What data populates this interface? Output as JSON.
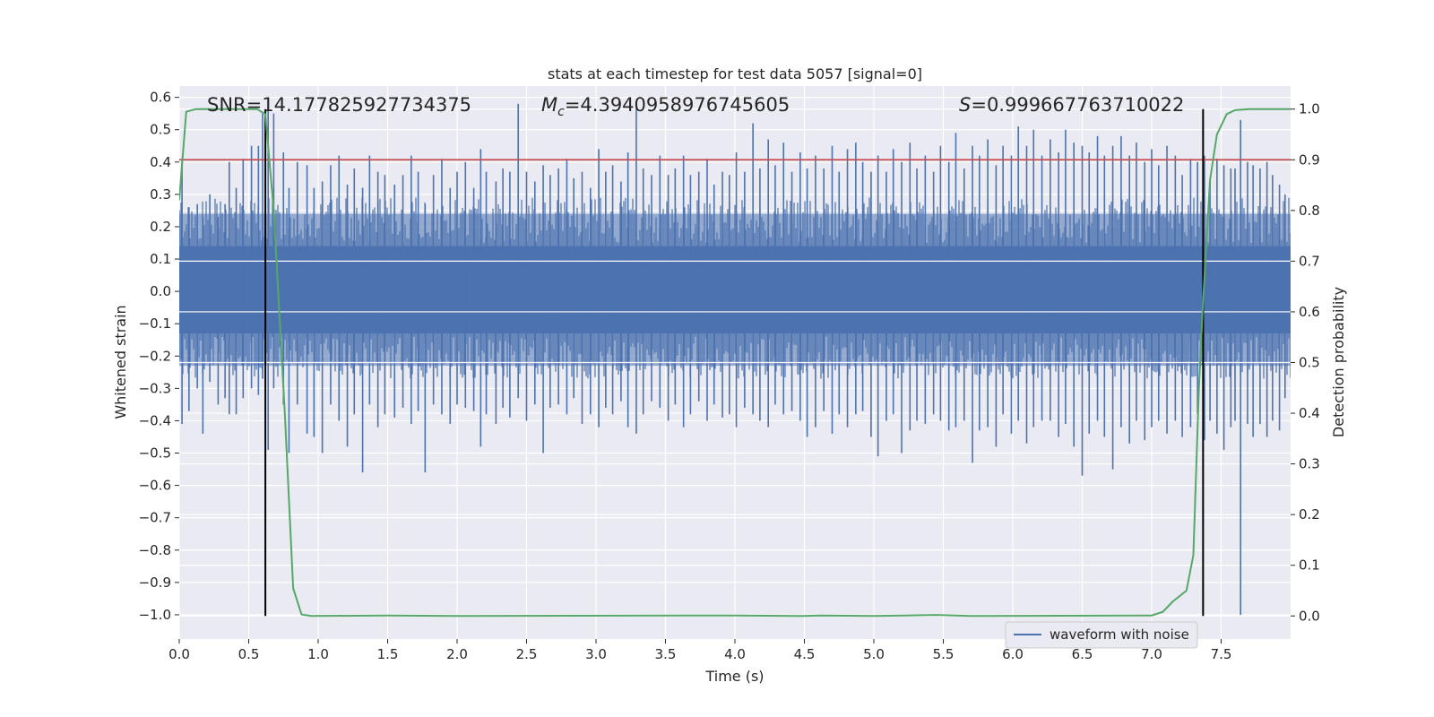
{
  "chart_data": {
    "type": "line",
    "title": "stats at each timestep for test data 5057 [signal=0]",
    "xlabel": "Time (s)",
    "ylabel": "Whitened strain",
    "y2label": "Detection probability",
    "xlim": [
      0.0,
      8.0
    ],
    "ylim": [
      -1.075,
      0.635
    ],
    "y2lim": [
      -0.0455,
      1.0455
    ],
    "xticks": [
      "0.0",
      "0.5",
      "1.0",
      "1.5",
      "2.0",
      "2.5",
      "3.0",
      "3.5",
      "4.0",
      "4.5",
      "5.0",
      "5.5",
      "6.0",
      "6.5",
      "7.0",
      "7.5"
    ],
    "yticks": [
      "0.6",
      "0.5",
      "0.4",
      "0.3",
      "0.2",
      "0.1",
      "0.0",
      "−0.1",
      "−0.2",
      "−0.3",
      "−0.4",
      "−0.5",
      "−0.6",
      "−0.7",
      "−0.8",
      "−0.9",
      "−1.0"
    ],
    "y2ticks": [
      "1.0",
      "0.9",
      "0.8",
      "0.7",
      "0.6",
      "0.5",
      "0.4",
      "0.3",
      "0.2",
      "0.1",
      "0.0"
    ],
    "grid": true,
    "legend": {
      "position": "lower-right",
      "entries": [
        "waveform with noise"
      ]
    },
    "annotations": {
      "snr": "SNR=14.177825927734375",
      "mc_symbol": "M",
      "mc_sub": "c",
      "mc_value": "=4.3940958976745605",
      "s_symbol": "S",
      "s_value": "=0.999667763710022"
    },
    "threshold": 0.9,
    "vlines": [
      0.62,
      7.37
    ],
    "waveform": {
      "name": "waveform with noise",
      "color": "#4c72b0",
      "spikes": [
        [
          0.02,
          0.41,
          -0.41
        ],
        [
          0.07,
          0.26,
          -0.37
        ],
        [
          0.13,
          0.27,
          -0.3
        ],
        [
          0.17,
          0.23,
          -0.44
        ],
        [
          0.22,
          0.3,
          -0.28
        ],
        [
          0.28,
          0.23,
          -0.35
        ],
        [
          0.33,
          0.27,
          -0.33
        ],
        [
          0.36,
          0.4,
          -0.38
        ],
        [
          0.41,
          0.32,
          -0.38
        ],
        [
          0.46,
          0.41,
          -0.33
        ],
        [
          0.52,
          0.45,
          -0.3
        ],
        [
          0.57,
          0.45,
          -0.32
        ],
        [
          0.6,
          0.55,
          -0.27
        ],
        [
          0.64,
          0.58,
          -0.49
        ],
        [
          0.68,
          0.55,
          -0.3
        ],
        [
          0.75,
          0.43,
          -0.35
        ],
        [
          0.79,
          0.32,
          -0.5
        ],
        [
          0.85,
          0.4,
          -0.35
        ],
        [
          0.92,
          0.39,
          -0.44
        ],
        [
          0.97,
          0.32,
          -0.45
        ],
        [
          1.03,
          0.34,
          -0.5
        ],
        [
          1.09,
          0.39,
          -0.35
        ],
        [
          1.15,
          0.42,
          -0.4
        ],
        [
          1.21,
          0.33,
          -0.48
        ],
        [
          1.26,
          0.38,
          -0.38
        ],
        [
          1.32,
          0.32,
          -0.56
        ],
        [
          1.37,
          0.42,
          -0.35
        ],
        [
          1.43,
          0.37,
          -0.42
        ],
        [
          1.48,
          0.36,
          -0.38
        ],
        [
          1.55,
          0.33,
          -0.39
        ],
        [
          1.61,
          0.36,
          -0.36
        ],
        [
          1.67,
          0.42,
          -0.41
        ],
        [
          1.72,
          0.37,
          -0.37
        ],
        [
          1.77,
          0.27,
          -0.56
        ],
        [
          1.83,
          0.36,
          -0.35
        ],
        [
          1.89,
          0.41,
          -0.38
        ],
        [
          1.95,
          0.32,
          -0.41
        ],
        [
          2.0,
          0.37,
          -0.35
        ],
        [
          2.06,
          0.4,
          -0.36
        ],
        [
          2.12,
          0.32,
          -0.37
        ],
        [
          2.17,
          0.44,
          -0.48
        ],
        [
          2.21,
          0.37,
          -0.38
        ],
        [
          2.28,
          0.34,
          -0.41
        ],
        [
          2.33,
          0.38,
          -0.36
        ],
        [
          2.38,
          0.37,
          -0.39
        ],
        [
          2.44,
          0.58,
          -0.33
        ],
        [
          2.5,
          0.37,
          -0.4
        ],
        [
          2.56,
          0.34,
          -0.35
        ],
        [
          2.62,
          0.39,
          -0.5
        ],
        [
          2.67,
          0.36,
          -0.36
        ],
        [
          2.73,
          0.38,
          -0.35
        ],
        [
          2.79,
          0.41,
          -0.38
        ],
        [
          2.84,
          0.35,
          -0.33
        ],
        [
          2.9,
          0.37,
          -0.41
        ],
        [
          2.96,
          0.32,
          -0.38
        ],
        [
          3.02,
          0.44,
          -0.42
        ],
        [
          3.07,
          0.37,
          -0.36
        ],
        [
          3.12,
          0.39,
          -0.38
        ],
        [
          3.18,
          0.34,
          -0.34
        ],
        [
          3.23,
          0.43,
          -0.42
        ],
        [
          3.29,
          0.58,
          -0.44
        ],
        [
          3.34,
          0.38,
          -0.38
        ],
        [
          3.4,
          0.36,
          -0.34
        ],
        [
          3.46,
          0.42,
          -0.36
        ],
        [
          3.52,
          0.36,
          -0.4
        ],
        [
          3.57,
          0.38,
          -0.35
        ],
        [
          3.63,
          0.42,
          -0.42
        ],
        [
          3.68,
          0.36,
          -0.38
        ],
        [
          3.74,
          0.37,
          -0.34
        ],
        [
          3.8,
          0.41,
          -0.4
        ],
        [
          3.85,
          0.33,
          -0.35
        ],
        [
          3.91,
          0.37,
          -0.39
        ],
        [
          3.96,
          0.36,
          -0.38
        ],
        [
          4.01,
          0.43,
          -0.42
        ],
        [
          4.07,
          0.37,
          -0.36
        ],
        [
          4.13,
          0.52,
          -0.38
        ],
        [
          4.18,
          0.38,
          -0.4
        ],
        [
          4.24,
          0.47,
          -0.42
        ],
        [
          4.29,
          0.39,
          -0.35
        ],
        [
          4.35,
          0.46,
          -0.38
        ],
        [
          4.41,
          0.37,
          -0.37
        ],
        [
          4.47,
          0.43,
          -0.4
        ],
        [
          4.52,
          0.38,
          -0.45
        ],
        [
          4.58,
          0.42,
          -0.42
        ],
        [
          4.64,
          0.38,
          -0.37
        ],
        [
          4.7,
          0.45,
          -0.44
        ],
        [
          4.75,
          0.37,
          -0.38
        ],
        [
          4.81,
          0.44,
          -0.42
        ],
        [
          4.87,
          0.46,
          -0.38
        ],
        [
          4.92,
          0.4,
          -0.37
        ],
        [
          4.98,
          0.37,
          -0.45
        ],
        [
          5.03,
          0.42,
          -0.51
        ],
        [
          5.09,
          0.37,
          -0.4
        ],
        [
          5.14,
          0.44,
          -0.38
        ],
        [
          5.2,
          0.4,
          -0.5
        ],
        [
          5.26,
          0.46,
          -0.43
        ],
        [
          5.31,
          0.38,
          -0.4
        ],
        [
          5.37,
          0.42,
          -0.41
        ],
        [
          5.43,
          0.37,
          -0.38
        ],
        [
          5.48,
          0.45,
          -0.4
        ],
        [
          5.54,
          0.4,
          -0.43
        ],
        [
          5.59,
          0.49,
          -0.42
        ],
        [
          5.65,
          0.38,
          -0.4
        ],
        [
          5.71,
          0.45,
          -0.53
        ],
        [
          5.76,
          0.42,
          -0.43
        ],
        [
          5.82,
          0.47,
          -0.42
        ],
        [
          5.88,
          0.39,
          -0.48
        ],
        [
          5.93,
          0.45,
          -0.38
        ],
        [
          5.99,
          0.42,
          -0.44
        ],
        [
          6.04,
          0.51,
          -0.4
        ],
        [
          6.1,
          0.45,
          -0.47
        ],
        [
          6.15,
          0.5,
          -0.42
        ],
        [
          6.21,
          0.42,
          -0.4
        ],
        [
          6.27,
          0.47,
          -0.4
        ],
        [
          6.33,
          0.43,
          -0.45
        ],
        [
          6.38,
          0.5,
          -0.41
        ],
        [
          6.44,
          0.46,
          -0.48
        ],
        [
          6.5,
          0.45,
          -0.57
        ],
        [
          6.55,
          0.43,
          -0.44
        ],
        [
          6.61,
          0.48,
          -0.4
        ],
        [
          6.66,
          0.42,
          -0.45
        ],
        [
          6.72,
          0.45,
          -0.55
        ],
        [
          6.78,
          0.48,
          -0.42
        ],
        [
          6.84,
          0.42,
          -0.47
        ],
        [
          6.89,
          0.46,
          -0.4
        ],
        [
          6.95,
          0.4,
          -0.46
        ],
        [
          7.0,
          0.44,
          -0.42
        ],
        [
          7.05,
          0.39,
          -0.4
        ],
        [
          7.11,
          0.45,
          -0.44
        ],
        [
          7.17,
          0.42,
          -0.4
        ],
        [
          7.22,
          0.36,
          -0.45
        ],
        [
          7.28,
          0.41,
          -0.42
        ],
        [
          7.33,
          0.4,
          -0.38
        ],
        [
          7.38,
          0.42,
          -0.46
        ],
        [
          7.42,
          0.34,
          -0.4
        ],
        [
          7.47,
          0.41,
          -0.44
        ],
        [
          7.52,
          0.39,
          -0.49
        ],
        [
          7.57,
          0.38,
          -0.42
        ],
        [
          7.6,
          0.38,
          -0.4
        ],
        [
          7.64,
          0.53,
          -1.0
        ],
        [
          7.69,
          0.4,
          -0.41
        ],
        [
          7.73,
          0.39,
          -0.45
        ],
        [
          7.78,
          0.38,
          -0.41
        ],
        [
          7.83,
          0.4,
          -0.45
        ],
        [
          7.87,
          0.36,
          -0.4
        ],
        [
          7.92,
          0.33,
          -0.43
        ],
        [
          7.96,
          0.3,
          -0.33
        ]
      ]
    },
    "probability": {
      "color": "#55a868",
      "points": [
        [
          0.0,
          0.82
        ],
        [
          0.05,
          0.995
        ],
        [
          0.12,
          1.0
        ],
        [
          0.56,
          1.0
        ],
        [
          0.62,
          0.99
        ],
        [
          0.68,
          0.8
        ],
        [
          0.76,
          0.4
        ],
        [
          0.82,
          0.055
        ],
        [
          0.88,
          0.003
        ],
        [
          0.95,
          0.0
        ],
        [
          1.5,
          0.001
        ],
        [
          2.0,
          0.0
        ],
        [
          4.0,
          0.001
        ],
        [
          4.5,
          0.0
        ],
        [
          4.62,
          0.001
        ],
        [
          5.0,
          0.0
        ],
        [
          5.45,
          0.002
        ],
        [
          5.7,
          0.0
        ],
        [
          7.0,
          0.001
        ],
        [
          7.08,
          0.008
        ],
        [
          7.15,
          0.028
        ],
        [
          7.25,
          0.05
        ],
        [
          7.3,
          0.12
        ],
        [
          7.34,
          0.45
        ],
        [
          7.37,
          0.62
        ],
        [
          7.42,
          0.86
        ],
        [
          7.47,
          0.95
        ],
        [
          7.54,
          0.99
        ],
        [
          7.6,
          0.998
        ],
        [
          7.7,
          1.0
        ],
        [
          8.0,
          1.0
        ]
      ]
    },
    "threshold_color": "#c44e52"
  }
}
